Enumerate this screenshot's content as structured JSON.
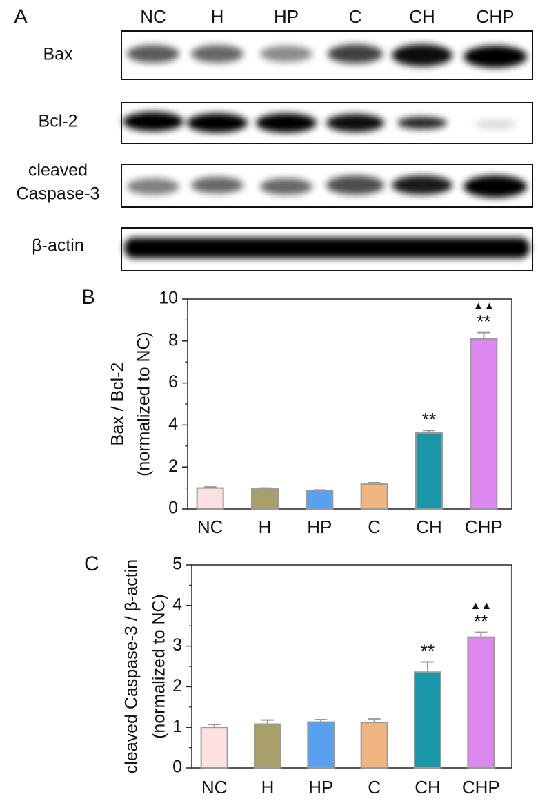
{
  "panel_labels": [
    "A",
    "B",
    "C"
  ],
  "blot": {
    "lanes": [
      "NC",
      "H",
      "HP",
      "C",
      "CH",
      "CHP"
    ],
    "rows": [
      [
        "Bax"
      ],
      [
        "Bcl-2"
      ],
      [
        "cleaved",
        "Caspase-3"
      ],
      [
        "β-actin"
      ]
    ]
  },
  "chart_data": [
    {
      "type": "bar",
      "ylabel": [
        "Bax / Bcl-2",
        "(normalized to NC)"
      ],
      "categories": [
        "NC",
        "H",
        "HP",
        "C",
        "CH",
        "CHP"
      ],
      "values": [
        1.0,
        0.95,
        0.88,
        1.18,
        3.62,
        8.1
      ],
      "errors": [
        0.05,
        0.05,
        0.03,
        0.07,
        0.12,
        0.3
      ],
      "colors": [
        "#fde0e0",
        "#a89f6a",
        "#5aa0f0",
        "#f0b580",
        "#1a96a8",
        "#dd88ee"
      ],
      "significance": [
        null,
        null,
        null,
        null,
        "**",
        "**"
      ],
      "significance_2": [
        null,
        null,
        null,
        null,
        null,
        "▲▲"
      ],
      "ylim": [
        0,
        10
      ],
      "yticks": [
        0,
        2,
        4,
        6,
        8,
        10
      ],
      "yminor": [
        1,
        3,
        5,
        7,
        9
      ]
    },
    {
      "type": "bar",
      "ylabel": [
        "cleaved Caspase-3 / β-actin",
        "(normalized to NC)"
      ],
      "categories": [
        "NC",
        "H",
        "HP",
        "C",
        "CH",
        "CHP"
      ],
      "values": [
        1.0,
        1.08,
        1.13,
        1.12,
        2.36,
        3.22
      ],
      "errors": [
        0.07,
        0.1,
        0.06,
        0.09,
        0.25,
        0.12
      ],
      "colors": [
        "#fde0e0",
        "#a89f6a",
        "#5aa0f0",
        "#f0b580",
        "#1a96a8",
        "#dd88ee"
      ],
      "significance": [
        null,
        null,
        null,
        null,
        "**",
        "**"
      ],
      "significance_2": [
        null,
        null,
        null,
        null,
        null,
        "▲▲"
      ],
      "ylim": [
        0,
        5
      ],
      "yticks": [
        0,
        1,
        2,
        3,
        4,
        5
      ],
      "yminor": [
        0.5,
        1.5,
        2.5,
        3.5,
        4.5
      ]
    }
  ]
}
